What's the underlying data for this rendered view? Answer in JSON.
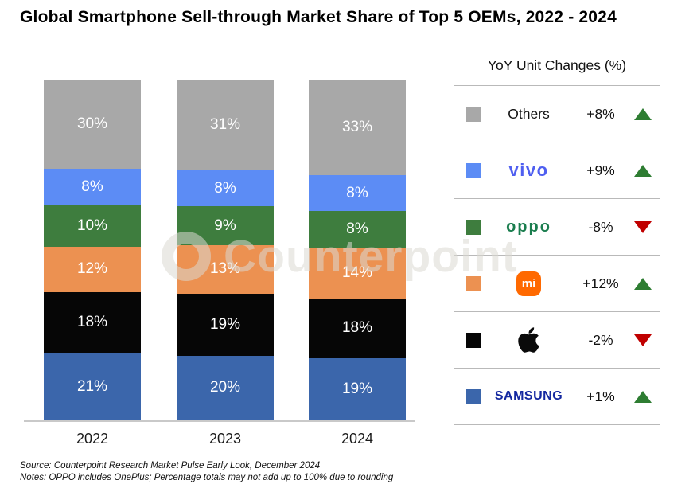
{
  "title": "Global Smartphone Sell-through Market Share of Top 5 OEMs, 2022 - 2024",
  "watermark_text": "Counterpoint",
  "chart_data": {
    "type": "bar",
    "stacked": true,
    "title": "Global Smartphone Sell-through Market Share of Top 5 OEMs, 2022 - 2024",
    "categories": [
      "2022",
      "2023",
      "2024"
    ],
    "series": [
      {
        "name": "Others",
        "color": "#a8a8a8",
        "values": [
          30,
          31,
          33
        ]
      },
      {
        "name": "vivo",
        "color": "#5c8cf5",
        "values": [
          8,
          8,
          8
        ]
      },
      {
        "name": "OPPO",
        "color": "#3e7d3e",
        "values": [
          10,
          9,
          8
        ]
      },
      {
        "name": "Xiaomi",
        "color": "#ec9151",
        "values": [
          12,
          13,
          14
        ]
      },
      {
        "name": "Apple",
        "color": "#060606",
        "values": [
          18,
          19,
          18
        ]
      },
      {
        "name": "Samsung",
        "color": "#3b66ab",
        "values": [
          21,
          20,
          19
        ]
      }
    ],
    "value_suffix": "%",
    "ylim": [
      0,
      100
    ],
    "legend_position": "right",
    "grid": false
  },
  "legend": {
    "header": "YoY Unit Changes (%)",
    "up_color": "#2e7d32",
    "down_color": "#c00000",
    "rows": [
      {
        "brand": "Others",
        "logo": "others",
        "logo_text": "Others",
        "swatch": "#a8a8a8",
        "change": "+8%",
        "direction": "up"
      },
      {
        "brand": "vivo",
        "logo": "vivo",
        "logo_text": "vivo",
        "swatch": "#5c8cf5",
        "change": "+9%",
        "direction": "up"
      },
      {
        "brand": "OPPO",
        "logo": "oppo",
        "logo_text": "oppo",
        "swatch": "#3e7d3e",
        "change": "-8%",
        "direction": "down"
      },
      {
        "brand": "Xiaomi",
        "logo": "mi",
        "logo_text": "mi",
        "swatch": "#ec9151",
        "change": "+12%",
        "direction": "up"
      },
      {
        "brand": "Apple",
        "logo": "apple",
        "logo_text": "",
        "swatch": "#060606",
        "change": "-2%",
        "direction": "down"
      },
      {
        "brand": "Samsung",
        "logo": "samsung",
        "logo_text": "SAMSUNG",
        "swatch": "#3b66ab",
        "change": "+1%",
        "direction": "up"
      }
    ]
  },
  "footer": {
    "source": "Source: Counterpoint Research Market Pulse Early Look, December 2024",
    "notes": "Notes: OPPO includes OnePlus; Percentage totals may not add up to 100% due to rounding"
  }
}
